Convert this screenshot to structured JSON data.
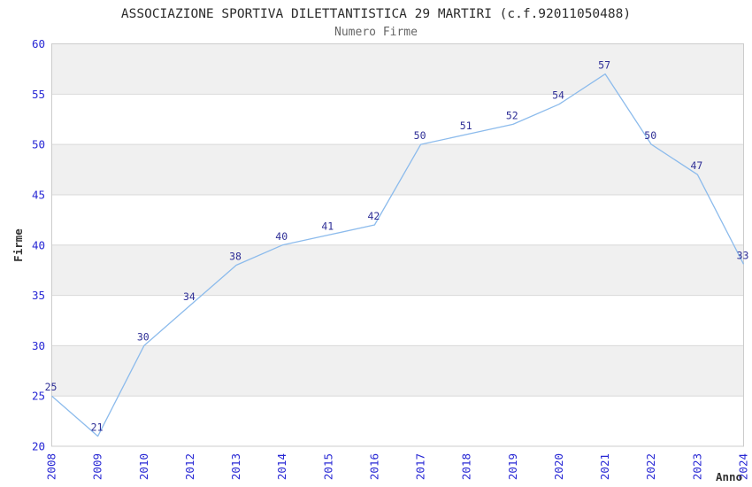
{
  "page": {
    "background": "#ffffff"
  },
  "chart_data": {
    "type": "line",
    "title": "ASSOCIAZIONE SPORTIVA DILETTANTISTICA 29 MARTIRI (c.f.92011050488)",
    "subtitle": "Numero Firme",
    "xlabel": "Anno",
    "ylabel": "Firme",
    "categories": [
      "2008",
      "2009",
      "2010",
      "2012",
      "2013",
      "2014",
      "2015",
      "2016",
      "2017",
      "2018",
      "2019",
      "2020",
      "2021",
      "2022",
      "2023",
      "2024"
    ],
    "values": [
      25,
      21,
      30,
      34,
      38,
      40,
      41,
      42,
      50,
      51,
      52,
      54,
      57,
      50,
      47,
      33
    ],
    "ylim": [
      20,
      60
    ],
    "ytick_step": 5,
    "yticks": [
      20,
      25,
      30,
      35,
      40,
      45,
      50,
      55,
      60
    ],
    "grid": "horizontal",
    "legend": "none",
    "data_labels_shown": true,
    "layout": {
      "band_fill_value_ranges": [
        [
          25,
          30
        ],
        [
          35,
          40
        ],
        [
          45,
          50
        ],
        [
          55,
          60
        ]
      ],
      "xtick_rotation_deg": -90,
      "ylabel_rotation_deg": -90,
      "last_point_rendered_at_value": 38.1
    },
    "colors": {
      "line": "#8cbbec",
      "data_label": "#2e2e96",
      "tick_label": "#2727d4",
      "band": "#f0f0f0",
      "gridline": "#d9d9d9",
      "plot_border": "#cccccc",
      "title": "#2b2b2b",
      "subtitle": "#666666",
      "axis_title": "#333333",
      "background": "#ffffff"
    }
  }
}
